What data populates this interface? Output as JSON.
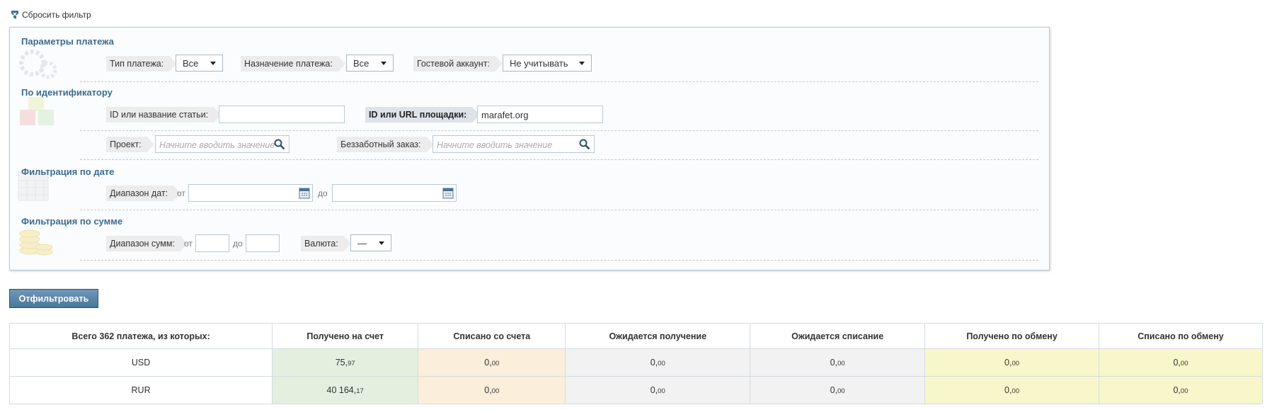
{
  "filter": {
    "reset": "Сбросить фильтр",
    "payment": {
      "title": "Параметры платежа",
      "type_label": "Тип платежа:",
      "type_value": "Все",
      "purpose_label": "Назначение платежа:",
      "purpose_value": "Все",
      "guest_label": "Гостевой аккаунт:",
      "guest_value": "Не учитывать"
    },
    "identifier": {
      "title": "По идентификатору",
      "article_label": "ID или название статьи:",
      "site_label": "ID или URL площадки:",
      "site_value": "marafet.org",
      "project_label": "Проект:",
      "project_placeholder": "Начните вводить значение",
      "order_label": "Беззаботный заказ:",
      "order_placeholder": "Начните вводить значение"
    },
    "date": {
      "title": "Фильтрация по дате",
      "range_label": "Диапазон дат:",
      "from": "от",
      "to": "до"
    },
    "sum": {
      "title": "Фильтрация по сумме",
      "range_label": "Диапазон сумм:",
      "from": "от",
      "to": "до",
      "currency_label": "Валюта:",
      "currency_value": "—"
    },
    "submit": "Отфильтровать"
  },
  "table": {
    "header": [
      "Всего 362 платежа, из которых:",
      "Получено на счет",
      "Списано со счета",
      "Ожидается получение",
      "Ожидается списание",
      "Получено по обмену",
      "Списано по обмену"
    ],
    "rows": [
      [
        "USD",
        "75,97",
        "0,00",
        "0,00",
        "0,00",
        "0,00",
        "0,00"
      ],
      [
        "RUR",
        "40 164,17",
        "0,00",
        "0,00",
        "0,00",
        "0,00",
        "0,00"
      ]
    ]
  }
}
